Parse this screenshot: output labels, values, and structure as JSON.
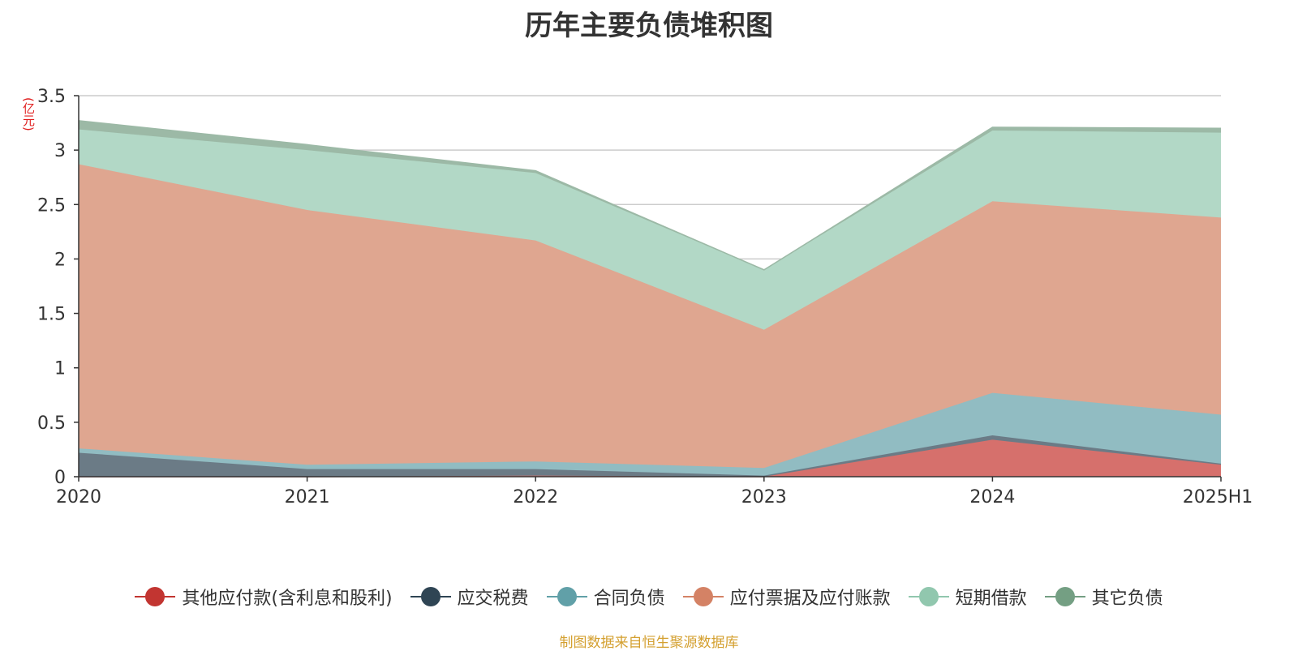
{
  "chart_data": {
    "type": "area",
    "stacked": true,
    "title": "历年主要负债堆积图",
    "unit": "(亿元)",
    "source_note": "制图数据来自恒生聚源数据库",
    "categories": [
      "2020",
      "2021",
      "2022",
      "2023",
      "2024",
      "2025H1"
    ],
    "ylim": [
      0,
      3.5
    ],
    "yticks": [
      "0",
      "0.5",
      "1",
      "1.5",
      "2",
      "2.5",
      "3",
      "3.5"
    ],
    "grid": true,
    "legend_position": "bottom",
    "series": [
      {
        "name": "其他应付款(含利息和股利)",
        "color": "#c23531",
        "fill": "#d6706c",
        "values": [
          0.0,
          0.0,
          0.01,
          0.0,
          0.34,
          0.11
        ]
      },
      {
        "name": "应交税费",
        "color": "#2f4554",
        "fill": "#6b7b86",
        "values": [
          0.22,
          0.07,
          0.06,
          0.01,
          0.04,
          0.01
        ]
      },
      {
        "name": "合同负债",
        "color": "#61a0a8",
        "fill": "#91bcc2",
        "values": [
          0.04,
          0.04,
          0.07,
          0.07,
          0.39,
          0.45
        ]
      },
      {
        "name": "应付票据及应付账款",
        "color": "#d48265",
        "fill": "#dfa690",
        "values": [
          2.61,
          2.34,
          2.03,
          1.27,
          1.76,
          1.81
        ]
      },
      {
        "name": "短期借款",
        "color": "#91c7ae",
        "fill": "#b2d8c6",
        "values": [
          0.32,
          0.55,
          0.62,
          0.55,
          0.65,
          0.78
        ]
      },
      {
        "name": "其它负债",
        "color": "#749f83",
        "fill": "#9cb9a6",
        "values": [
          0.08,
          0.05,
          0.02,
          0.0,
          0.03,
          0.04
        ]
      }
    ]
  }
}
